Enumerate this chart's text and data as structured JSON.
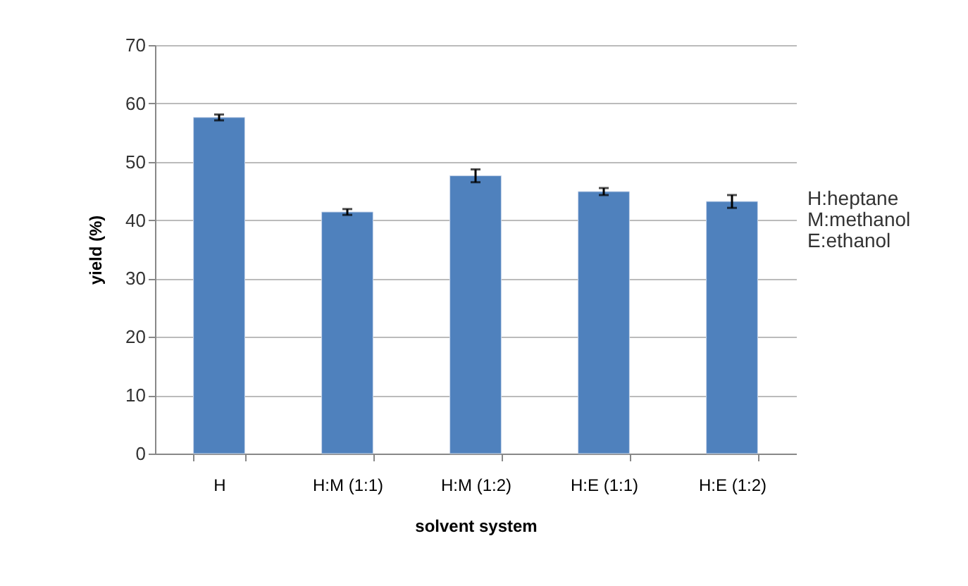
{
  "chart_data": {
    "type": "bar",
    "xlabel": "solvent system",
    "ylabel": "yield (%)",
    "categories": [
      "H",
      "H:M (1:1)",
      "H:M (1:2)",
      "H:E (1:1)",
      "H:E (1:2)"
    ],
    "values": [
      57.6,
      41.4,
      47.6,
      44.9,
      43.2
    ],
    "errors": [
      0.5,
      0.5,
      1.1,
      0.6,
      1.1
    ],
    "color": "#4f81bd",
    "ylim": [
      0,
      70
    ],
    "yticks": [
      0,
      10,
      20,
      30,
      40,
      50,
      60,
      70
    ],
    "grid": "y",
    "annotations": [
      "H:heptane",
      "M:methanol",
      "E:ethanol"
    ]
  }
}
